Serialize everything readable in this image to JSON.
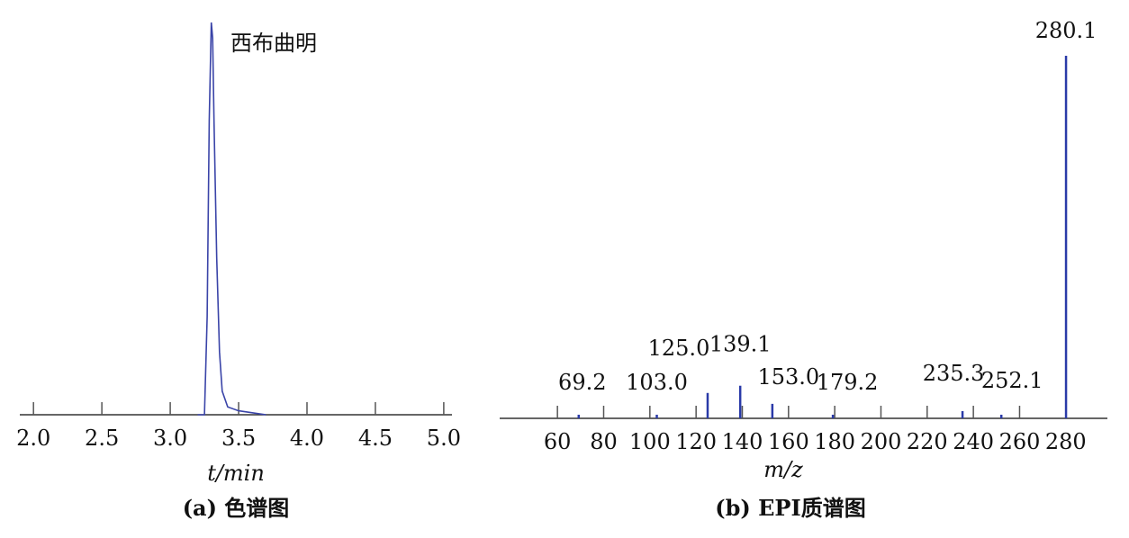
{
  "chart_data": [
    {
      "type": "line",
      "caption": "(a) 色谱图",
      "x_label": "t/min",
      "annotation": "西布曲明",
      "x": [
        3.2,
        3.25,
        3.27,
        3.285,
        3.3,
        3.31,
        3.32,
        3.34,
        3.36,
        3.38,
        3.42,
        3.5,
        3.6,
        3.7
      ],
      "series": [
        {
          "name": "西布曲明",
          "color": "#3a44a8",
          "values": [
            0,
            0,
            25,
            75,
            100,
            96,
            75,
            40,
            16,
            6,
            2,
            1,
            0.5,
            0
          ]
        }
      ],
      "xlim": [
        1.9,
        5.06
      ],
      "ylim": [
        0,
        100
      ],
      "xticks": [
        {
          "value": 2,
          "label": "2.0"
        },
        2.5,
        {
          "value": 3,
          "label": "3.0"
        },
        3.5,
        {
          "value": 4,
          "label": "4.0"
        },
        4.5,
        {
          "value": 5,
          "label": "5.0"
        }
      ]
    },
    {
      "type": "spectrum",
      "caption": "(b) EPI质谱图",
      "x_label": "m/z",
      "x": [
        69.2,
        103.0,
        125.0,
        139.1,
        153.0,
        179.2,
        235.3,
        252.1,
        280.1
      ],
      "labels": [
        "69.2",
        "103.0",
        "125.0",
        "139.1",
        "153.0",
        "179.2",
        "235.3",
        "252.1",
        "280.1"
      ],
      "values": [
        1,
        1,
        7,
        9,
        4,
        1,
        2,
        1,
        100
      ],
      "color": "#2a3aa8",
      "xlim": [
        35,
        298
      ],
      "ylim": [
        0,
        100
      ],
      "xticks": [
        60,
        80,
        100,
        120,
        140,
        160,
        180,
        200,
        220,
        240,
        260,
        280
      ]
    }
  ]
}
